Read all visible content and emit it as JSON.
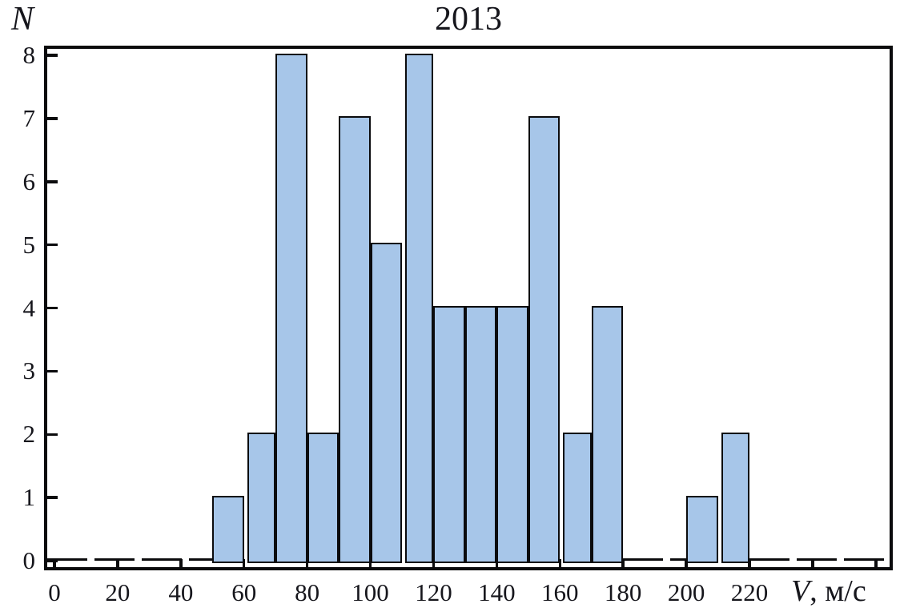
{
  "chart_data": {
    "type": "bar",
    "title": "2013",
    "ylabel": "N",
    "xlabel": "V, м/с",
    "xlabel_var": "V",
    "xlabel_unit": ", м/с",
    "bin_width": 10,
    "bins": [
      {
        "start": 50,
        "end": 60,
        "count": 1
      },
      {
        "start": 60,
        "end": 70,
        "count": 2,
        "gap_before": true
      },
      {
        "start": 70,
        "end": 80,
        "count": 8
      },
      {
        "start": 80,
        "end": 90,
        "count": 2
      },
      {
        "start": 90,
        "end": 100,
        "count": 7
      },
      {
        "start": 100,
        "end": 110,
        "count": 5
      },
      {
        "start": 110,
        "end": 120,
        "count": 8,
        "gap_before": true
      },
      {
        "start": 120,
        "end": 130,
        "count": 4
      },
      {
        "start": 130,
        "end": 140,
        "count": 4
      },
      {
        "start": 140,
        "end": 150,
        "count": 4
      },
      {
        "start": 150,
        "end": 160,
        "count": 7
      },
      {
        "start": 160,
        "end": 170,
        "count": 2,
        "gap_before": true
      },
      {
        "start": 170,
        "end": 180,
        "count": 4
      },
      {
        "start": 200,
        "end": 210,
        "count": 1
      },
      {
        "start": 210,
        "end": 220,
        "count": 2,
        "gap_before": true
      }
    ],
    "x_ticks_labeled": [
      0,
      20,
      40,
      60,
      80,
      100,
      120,
      140,
      160,
      180,
      200,
      220
    ],
    "x_ticks_unlabeled": [
      240,
      260
    ],
    "y_ticks": [
      0,
      1,
      2,
      3,
      4,
      5,
      6,
      7,
      8
    ],
    "xlim": [
      -3.3,
      265
    ],
    "ylim": [
      -0.15,
      8.2
    ],
    "zero_line_segments": [
      [
        -3.3,
        50
      ],
      [
        180,
        200
      ],
      [
        220,
        264
      ]
    ],
    "grid": false,
    "legend": "none",
    "colors": {
      "bar_fill": "#a7c6e9",
      "bar_border": "#0b0b0d",
      "axis": "#0b0b0d",
      "text": "#16161c",
      "background": "#ffffff"
    }
  }
}
